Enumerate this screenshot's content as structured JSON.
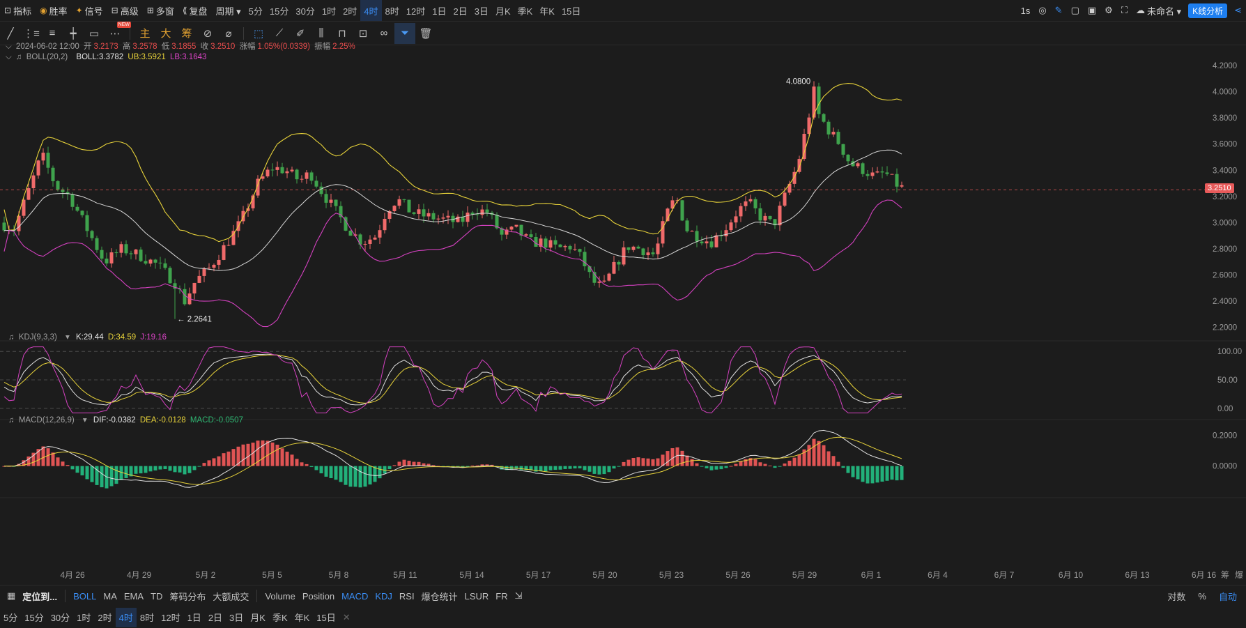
{
  "topbar": {
    "menus": [
      {
        "icon": "indicator-icon",
        "label": "指标"
      },
      {
        "icon": "winrate-icon",
        "label": "胜率",
        "accent": true
      },
      {
        "icon": "signal-icon",
        "label": "信号",
        "accent": true
      },
      {
        "icon": "advanced-icon",
        "label": "高级"
      },
      {
        "icon": "multiwindow-icon",
        "label": "多窗"
      },
      {
        "icon": "replay-icon",
        "label": "复盘"
      },
      {
        "icon": "",
        "label": "周期 ▾"
      }
    ],
    "periods": [
      "5分",
      "15分",
      "30分",
      "1时",
      "2时",
      "4时",
      "8时",
      "12时",
      "1日",
      "2日",
      "3日",
      "月K",
      "季K",
      "年K",
      "15日"
    ],
    "active_period": "4时",
    "refresh": "1s",
    "layout_name": "未命名 ▾",
    "kline_button": "K线分析"
  },
  "toolbar": {
    "main_label": "主",
    "big_label": "大",
    "chip_label": "筹",
    "new_badge": "NEW"
  },
  "price_info": {
    "date": "2024-06-02 12:00",
    "open_label": "开",
    "open": "3.2173",
    "high_label": "高",
    "high": "3.2578",
    "low_label": "低",
    "low": "3.1855",
    "close_label": "收",
    "close": "3.2510",
    "change_label": "涨幅",
    "change": "1.05%(0.0339)",
    "amp_label": "振幅",
    "amp": "2.25%"
  },
  "boll_info": {
    "name": "BOLL(20,2)",
    "boll": "BOLL:3.3782",
    "ub": "UB:3.5921",
    "lb": "LB:3.1643"
  },
  "kdj_info": {
    "name": "KDJ(9,3,3)",
    "k": "K:29.44",
    "d": "D:34.59",
    "j": "J:19.16"
  },
  "macd_info": {
    "name": "MACD(12,26,9)",
    "dif": "DIF:-0.0382",
    "dea": "DEA:-0.0128",
    "macd": "MACD:-0.0507"
  },
  "chart_data": {
    "type": "candlestick",
    "main": {
      "ylim": [
        2.15,
        4.28
      ],
      "yticks": [
        "4.2000",
        "4.0000",
        "3.8000",
        "3.6000",
        "3.4000",
        "3.2000",
        "3.0000",
        "2.8000",
        "2.6000",
        "2.4000",
        "2.2000"
      ],
      "current_price": "3.2510",
      "high_marker": "4.0800",
      "low_marker": "← 2.2641"
    },
    "kdj": {
      "ylim": [
        -10,
        110
      ],
      "yticks": [
        "100.00",
        "50.00",
        "0.00"
      ]
    },
    "macd": {
      "ylim": [
        -0.16,
        0.27
      ],
      "yticks": [
        "0.2000",
        "0.0000"
      ]
    },
    "x_labels": [
      "4月 26",
      "4月 29",
      "5月 2",
      "5月 5",
      "5月 8",
      "5月 11",
      "5月 14",
      "5月 17",
      "5月 20",
      "5月 23",
      "5月 26",
      "5月 29",
      "6月 1",
      "6月 4",
      "6月 7",
      "6月 10",
      "6月 13",
      "6月 16"
    ],
    "x_suffix": [
      "筹",
      "爆"
    ],
    "colors": {
      "up": "#f06a6a",
      "down": "#3fa34d",
      "ub": "#e8d33a",
      "mid": "#d8d8d8",
      "lb": "#d441c0",
      "k": "#e0e0e0",
      "d": "#e8d33a",
      "j": "#d441c0",
      "hist_up": "#e05454",
      "hist_down": "#22b07a"
    }
  },
  "bottom": {
    "locate": "定位到...",
    "indicators": [
      "BOLL",
      "MA",
      "EMA",
      "TD",
      "筹码分布",
      "大额成交"
    ],
    "sub_indicators": [
      "Volume",
      "Position",
      "MACD",
      "KDJ",
      "RSI",
      "爆仓统计",
      "LSUR",
      "FR"
    ],
    "on": [
      "BOLL",
      "MACD",
      "KDJ"
    ],
    "right": [
      "对数",
      "%",
      "自动"
    ],
    "periods": [
      "5分",
      "15分",
      "30分",
      "1时",
      "2时",
      "4时",
      "8时",
      "12时",
      "1日",
      "2日",
      "3日",
      "月K",
      "季K",
      "年K",
      "15日"
    ],
    "active_period": "4时"
  }
}
